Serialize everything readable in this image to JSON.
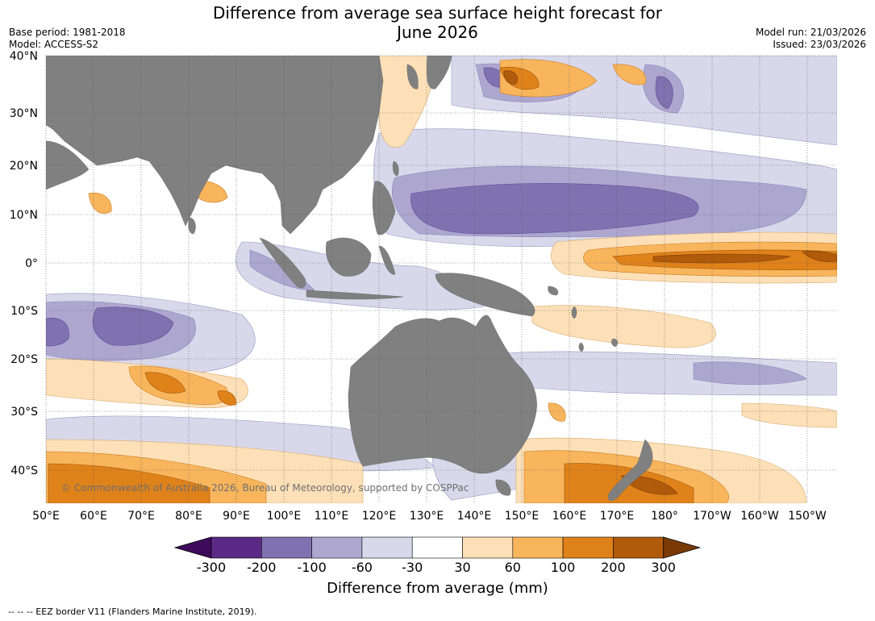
{
  "title_line1": "Difference from average sea surface height forecast for",
  "title_line2": "June 2026",
  "base_period": "Base period: 1981-2018",
  "model": "Model: ACCESS-S2",
  "model_run": "Model run: 21/03/2026",
  "issued": "Issued: 23/03/2026",
  "credit": "© Commonwealth of Australia 2026, Bureau of Meteorology, supported by COSPPac",
  "lat_labels": [
    "40°N",
    "30°N",
    "20°N",
    "10°N",
    "0°",
    "10°S",
    "20°S",
    "30°S",
    "40°S"
  ],
  "lon_labels": [
    "50°E",
    "60°E",
    "70°E",
    "80°E",
    "90°E",
    "100°E",
    "110°E",
    "120°E",
    "130°E",
    "140°E",
    "150°E",
    "160°E",
    "170°E",
    "180°",
    "170°W",
    "160°W",
    "150°W"
  ],
  "colorbar": {
    "title": "Difference from average (mm)",
    "ticks": [
      "-300",
      "-200",
      "-100",
      "-60",
      "-30",
      "30",
      "60",
      "100",
      "200",
      "300"
    ],
    "colors": [
      "#3f0a5c",
      "#5b2a86",
      "#8072b0",
      "#ada7d0",
      "#d8d8ea",
      "#ffffff",
      "#fde0b8",
      "#f8b55c",
      "#e0821a",
      "#b05a0c",
      "#7a3a06"
    ]
  },
  "colors": {
    "land": "#808080",
    "ocean": "#ffffff"
  },
  "footnote": "--  --  -- EEZ border V11 (Flanders Marine Institute, 2019)."
}
